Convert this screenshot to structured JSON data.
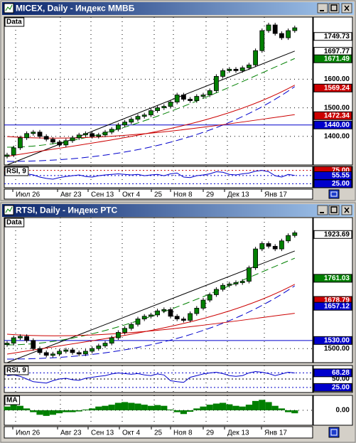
{
  "date_labels": [
    "Июл 26",
    "Авг 23",
    "Сен 13",
    "Окт 4",
    "25",
    "Ноя 8",
    "29",
    "Дек 13",
    "Янв 17"
  ],
  "windows": [
    {
      "title": "MICEX, Daily - Индекс ММВБ",
      "panel_label": "Data",
      "ylim": [
        1300,
        1817.5
      ],
      "closes": [
        1335,
        1360,
        1395,
        1410,
        1415,
        1400,
        1390,
        1380,
        1370,
        1385,
        1395,
        1405,
        1410,
        1400,
        1405,
        1415,
        1425,
        1440,
        1450,
        1460,
        1470,
        1475,
        1490,
        1500,
        1505,
        1520,
        1545,
        1530,
        1525,
        1540,
        1545,
        1560,
        1610,
        1630,
        1635,
        1630,
        1640,
        1650,
        1700,
        1770,
        1790,
        1760,
        1745,
        1770,
        1780
      ],
      "price_labels": [
        {
          "value": 1749.73,
          "label": "1749.73",
          "bg": "#ffffff",
          "fg": "#000000"
        },
        {
          "value": 1697.77,
          "label": "1697.77",
          "bg": "#ffffff",
          "fg": "#000000"
        },
        {
          "value": 1671.49,
          "label": "1671.49",
          "bg": "#008000",
          "fg": "#ffffff"
        },
        {
          "value": 1600,
          "label": "1600.00",
          "bg": "none",
          "fg": "#000000"
        },
        {
          "value": 1569.24,
          "label": "1569.24",
          "bg": "#cc0000",
          "fg": "#ffffff"
        },
        {
          "value": 1500,
          "label": "1500.00",
          "bg": "none",
          "fg": "#000000"
        },
        {
          "value": 1472.34,
          "label": "1472.34",
          "bg": "#cc0000",
          "fg": "#ffffff"
        },
        {
          "value": 1440,
          "label": "1440.00",
          "bg": "#0000cc",
          "fg": "#ffffff"
        },
        {
          "value": 1400,
          "label": "1400.00",
          "bg": "none",
          "fg": "#000000"
        }
      ],
      "rsi_label": "RSI, 9",
      "rsi_ylim": [
        10,
        90
      ],
      "rsi": [
        55,
        60,
        65,
        62,
        58,
        50,
        45,
        42,
        48,
        52,
        55,
        58,
        52,
        50,
        55,
        58,
        60,
        62,
        60,
        58,
        60,
        55,
        58,
        60,
        55,
        62,
        65,
        50,
        48,
        55,
        58,
        62,
        70,
        68,
        60,
        58,
        62,
        65,
        72,
        75,
        70,
        55,
        50,
        60,
        56
      ],
      "rsi_labels": [
        {
          "value": 75,
          "label": "75.00",
          "bg": "#cc0000",
          "fg": "#ffffff"
        },
        {
          "value": 55.55,
          "label": "55.55",
          "bg": "#0000cc",
          "fg": "#ffffff"
        },
        {
          "value": 25,
          "label": "25.00",
          "bg": "#0000cc",
          "fg": "#ffffff"
        }
      ]
    },
    {
      "title": "RTSI, Daily - Индекс РТС",
      "panel_label": "Data",
      "ylim": [
        1447.7,
        1986.5
      ],
      "closes": [
        1520,
        1540,
        1545,
        1530,
        1500,
        1485,
        1475,
        1480,
        1490,
        1495,
        1485,
        1480,
        1490,
        1500,
        1510,
        1520,
        1540,
        1560,
        1575,
        1590,
        1610,
        1620,
        1625,
        1640,
        1645,
        1620,
        1610,
        1605,
        1630,
        1650,
        1680,
        1700,
        1720,
        1735,
        1740,
        1745,
        1750,
        1800,
        1870,
        1890,
        1880,
        1870,
        1900,
        1920,
        1930
      ],
      "price_labels": [
        {
          "value": 1923.69,
          "label": "1923.69",
          "bg": "#ffffff",
          "fg": "#000000"
        },
        {
          "value": 1761.03,
          "label": "1761.03",
          "bg": "#008000",
          "fg": "#ffffff"
        },
        {
          "value": 1678.79,
          "label": "1678.79",
          "bg": "#cc0000",
          "fg": "#ffffff"
        },
        {
          "value": 1657.12,
          "label": "1657.12",
          "bg": "#0000cc",
          "fg": "#ffffff"
        },
        {
          "value": 1530,
          "label": "1530.00",
          "bg": "#0000cc",
          "fg": "#ffffff"
        },
        {
          "value": 1500,
          "label": "1500.00",
          "bg": "none",
          "fg": "#000000"
        }
      ],
      "rsi_label": "RSI, 9",
      "rsi_ylim": [
        10,
        90
      ],
      "rsi": [
        60,
        62,
        58,
        50,
        42,
        40,
        38,
        45,
        50,
        52,
        48,
        46,
        52,
        55,
        58,
        60,
        65,
        68,
        66,
        64,
        66,
        62,
        60,
        65,
        62,
        45,
        42,
        40,
        55,
        60,
        65,
        68,
        70,
        66,
        60,
        58,
        60,
        68,
        72,
        70,
        66,
        60,
        65,
        70,
        68
      ],
      "rsi_labels": [
        {
          "value": 68.28,
          "label": "68.28",
          "bg": "#0000cc",
          "fg": "#ffffff"
        },
        {
          "value": 50,
          "label": "50.00",
          "bg": "none",
          "fg": "#000000"
        },
        {
          "value": 25,
          "label": "25.00",
          "bg": "#0000cc",
          "fg": "#ffffff"
        }
      ],
      "macd_label": "MA",
      "macd_ylim": [
        -40,
        40
      ],
      "macd": [
        10,
        15,
        12,
        5,
        -5,
        -12,
        -15,
        -12,
        -8,
        -5,
        -5,
        -3,
        2,
        5,
        10,
        12,
        15,
        20,
        22,
        20,
        18,
        15,
        12,
        14,
        12,
        2,
        -5,
        -10,
        -4,
        5,
        10,
        15,
        18,
        20,
        16,
        12,
        10,
        15,
        25,
        28,
        22,
        12,
        5,
        -5,
        -8
      ],
      "macd_labels": [
        {
          "value": 0,
          "label": "0.00",
          "bg": "none",
          "fg": "#000000"
        }
      ]
    }
  ]
}
